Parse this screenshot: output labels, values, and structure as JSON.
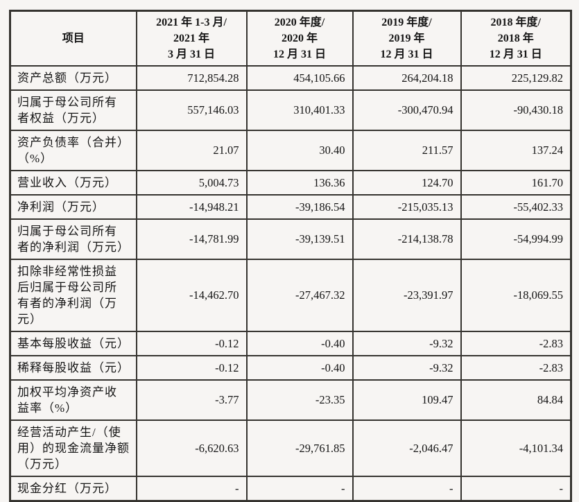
{
  "table": {
    "columns": [
      "项目",
      "2021 年 1-3 月/\n2021 年\n3 月 31 日",
      "2020 年度/\n2020 年\n12 月 31 日",
      "2019 年度/\n2019 年\n12 月 31 日",
      "2018 年度/\n2018 年\n12 月 31 日"
    ],
    "rows": [
      {
        "label": "资产总额（万元）",
        "values": [
          "712,854.28",
          "454,105.66",
          "264,204.18",
          "225,129.82"
        ]
      },
      {
        "label": "归属于母公司所有\n者权益（万元）",
        "values": [
          "557,146.03",
          "310,401.33",
          "-300,470.94",
          "-90,430.18"
        ]
      },
      {
        "label": "资产负债率（合并）\n（%）",
        "values": [
          "21.07",
          "30.40",
          "211.57",
          "137.24"
        ]
      },
      {
        "label": "营业收入（万元）",
        "values": [
          "5,004.73",
          "136.36",
          "124.70",
          "161.70"
        ]
      },
      {
        "label": "净利润（万元）",
        "values": [
          "-14,948.21",
          "-39,186.54",
          "-215,035.13",
          "-55,402.33"
        ]
      },
      {
        "label": "归属于母公司所有\n者的净利润（万元）",
        "values": [
          "-14,781.99",
          "-39,139.51",
          "-214,138.78",
          "-54,994.99"
        ]
      },
      {
        "label": "扣除非经常性损益\n后归属于母公司所\n有者的净利润（万\n元）",
        "values": [
          "-14,462.70",
          "-27,467.32",
          "-23,391.97",
          "-18,069.55"
        ]
      },
      {
        "label": "基本每股收益（元）",
        "values": [
          "-0.12",
          "-0.40",
          "-9.32",
          "-2.83"
        ]
      },
      {
        "label": "稀释每股收益（元）",
        "values": [
          "-0.12",
          "-0.40",
          "-9.32",
          "-2.83"
        ]
      },
      {
        "label": "加权平均净资产收\n益率（%）",
        "values": [
          "-3.77",
          "-23.35",
          "109.47",
          "84.84"
        ]
      },
      {
        "label": "经营活动产生/（使\n用）的现金流量净额\n（万元）",
        "values": [
          "-6,620.63",
          "-29,761.85",
          "-2,046.47",
          "-4,101.34"
        ]
      },
      {
        "label": "现金分红（万元）",
        "values": [
          "-",
          "-",
          "-",
          "-"
        ]
      }
    ]
  }
}
